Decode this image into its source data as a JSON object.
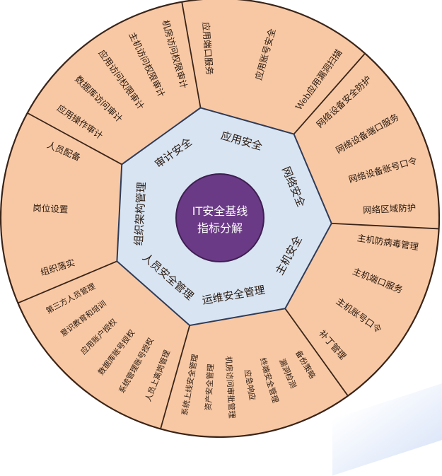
{
  "center": {
    "line1": "IT安全基线",
    "line2": "指标分解"
  },
  "sectors": [
    {
      "label": "应用安全",
      "items": [
        "应用端口服务",
        "应用账号安全",
        "Web应用漏洞扫描"
      ]
    },
    {
      "label": "网络安全",
      "items": [
        "网络设备安全防护",
        "网络设备端口服务",
        "网络设备账号口令",
        "网络区域防护"
      ]
    },
    {
      "label": "主机安全",
      "items": [
        "主机防病毒管理",
        "主机端口服务",
        "主机账号口令",
        "补丁管理"
      ]
    },
    {
      "label": "运维安全管理",
      "items": [
        "备份策略",
        "漏洞检测",
        "终端安全管理",
        "应急响应",
        "机房访问审批管理",
        "资产安全管理",
        "系统上线安全管理"
      ]
    },
    {
      "label": "人员安全管理",
      "items": [
        "人员上离岗管理",
        "系统管理账号授权",
        "数据库账号授权",
        "应用账户授权",
        "意识教育和培训",
        "第三方人员管理"
      ]
    },
    {
      "label": "组织架构管理",
      "items": [
        "组织落实",
        "岗位设置",
        "人员配备"
      ]
    },
    {
      "label": "审计安全",
      "items": [
        "应用操作审计",
        "数据库访问审计",
        "应用访问权限审计",
        "主机访问权限审计",
        "机房访问权限审计"
      ]
    }
  ],
  "colors": {
    "outer_fill": "#f8c8a4",
    "outer_stroke": "#3a2418",
    "inner_fill": "#d8e4f2",
    "inner_stroke": "#2e3b58",
    "center_fill": "#6b3a86",
    "center_text": "#ffffff",
    "text": "#2a1a10"
  }
}
